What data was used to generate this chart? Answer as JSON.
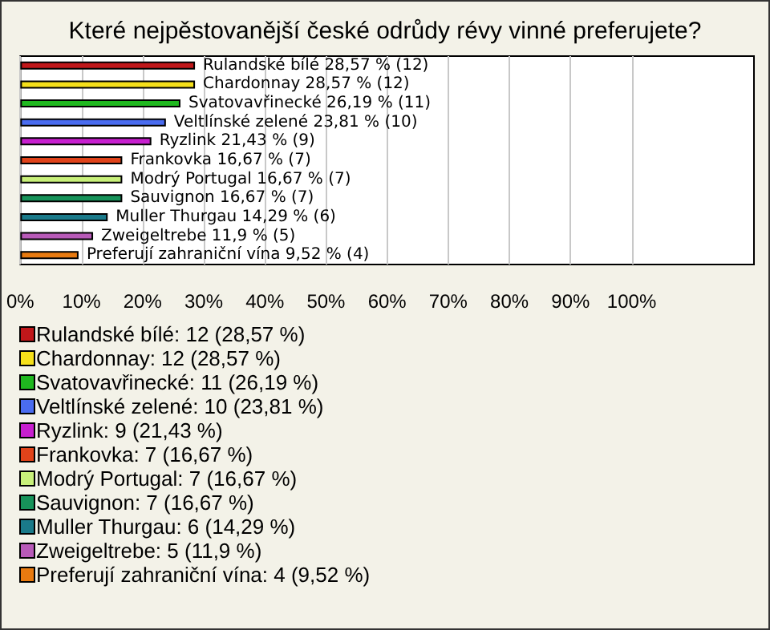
{
  "chart_data": {
    "type": "bar",
    "orientation": "horizontal",
    "title": "Které nejpěstovanější české odrůdy révy vinné preferujete?",
    "categories": [
      null,
      null,
      null,
      null,
      null,
      null,
      null,
      null,
      null,
      null,
      null
    ],
    "series": [
      {
        "name": "Rulandské bílé: 12 (28,57 %)",
        "color": "#c0171a",
        "values": [
          28.57,
          null,
          null,
          null,
          null,
          null,
          null,
          null,
          null,
          null,
          null
        ],
        "value_labels": [
          "Rulandské bílé 28,57 % (12)",
          null,
          null,
          null,
          null,
          null,
          null,
          null,
          null,
          null,
          null
        ]
      },
      {
        "name": "Chardonnay: 12 (28,57 %)",
        "color": "#f5e01a",
        "values": [
          null,
          28.57,
          null,
          null,
          null,
          null,
          null,
          null,
          null,
          null,
          null
        ],
        "value_labels": [
          null,
          "Chardonnay 28,57 % (12)",
          null,
          null,
          null,
          null,
          null,
          null,
          null,
          null,
          null
        ]
      },
      {
        "name": "Svatovavřinecké: 11 (26,19 %)",
        "color": "#1fb81f",
        "values": [
          null,
          null,
          26.19,
          null,
          null,
          null,
          null,
          null,
          null,
          null,
          null
        ],
        "value_labels": [
          null,
          null,
          "Svatovavřinecké 26,19 % (11)",
          null,
          null,
          null,
          null,
          null,
          null,
          null,
          null
        ]
      },
      {
        "name": "Veltlínské zelené: 10 (23,81 %)",
        "color": "#4a6cf0",
        "values": [
          null,
          null,
          null,
          23.81,
          null,
          null,
          null,
          null,
          null,
          null,
          null
        ],
        "value_labels": [
          null,
          null,
          null,
          "Veltlínské zelené 23,81 % (10)",
          null,
          null,
          null,
          null,
          null,
          null,
          null
        ]
      },
      {
        "name": "Ryzlink: 9 (21,43 %)",
        "color": "#c71fcf",
        "values": [
          null,
          null,
          null,
          null,
          21.43,
          null,
          null,
          null,
          null,
          null,
          null
        ],
        "value_labels": [
          null,
          null,
          null,
          null,
          "Ryzlink 21,43 % (9)",
          null,
          null,
          null,
          null,
          null,
          null
        ]
      },
      {
        "name": "Frankovka: 7 (16,67 %)",
        "color": "#e0431a",
        "values": [
          null,
          null,
          null,
          null,
          null,
          16.67,
          null,
          null,
          null,
          null,
          null
        ],
        "value_labels": [
          null,
          null,
          null,
          null,
          null,
          "Frankovka 16,67 % (7)",
          null,
          null,
          null,
          null,
          null
        ]
      },
      {
        "name": "Modrý Portugal: 7 (16,67 %)",
        "color": "#c8f07a",
        "values": [
          null,
          null,
          null,
          null,
          null,
          null,
          16.67,
          null,
          null,
          null,
          null
        ],
        "value_labels": [
          null,
          null,
          null,
          null,
          null,
          null,
          "Modrý Portugal 16,67 % (7)",
          null,
          null,
          null,
          null
        ]
      },
      {
        "name": "Sauvignon: 7 (16,67 %)",
        "color": "#17935a",
        "values": [
          null,
          null,
          null,
          null,
          null,
          null,
          null,
          16.67,
          null,
          null,
          null
        ],
        "value_labels": [
          null,
          null,
          null,
          null,
          null,
          null,
          null,
          "Sauvignon 16,67 % (7)",
          null,
          null,
          null
        ]
      },
      {
        "name": "Muller Thurgau: 6 (14,29 %)",
        "color": "#1a7a8a",
        "values": [
          null,
          null,
          null,
          null,
          null,
          null,
          null,
          null,
          14.29,
          null,
          null
        ],
        "value_labels": [
          null,
          null,
          null,
          null,
          null,
          null,
          null,
          null,
          "Muller Thurgau 14,29 % (6)",
          null,
          null
        ]
      },
      {
        "name": "Zweigeltrebe: 5 (11,9 %)",
        "color": "#b85ab8",
        "values": [
          null,
          null,
          null,
          null,
          null,
          null,
          null,
          null,
          null,
          11.9,
          null
        ],
        "value_labels": [
          null,
          null,
          null,
          null,
          null,
          null,
          null,
          null,
          null,
          "Zweigeltrebe 11,9 % (5)",
          null
        ]
      },
      {
        "name": "Preferují zahraniční vína: 4 (9,52 %)",
        "color": "#e87a10",
        "values": [
          null,
          null,
          null,
          null,
          null,
          null,
          null,
          null,
          null,
          null,
          9.52
        ],
        "value_labels": [
          null,
          null,
          null,
          null,
          null,
          null,
          null,
          null,
          null,
          null,
          "Preferují zahraniční vína 9,52 % (4)"
        ]
      }
    ],
    "xlim": [
      0,
      120
    ],
    "xticks": [
      {
        "value": 0,
        "label": "0%"
      },
      {
        "value": 10,
        "label": "10%"
      },
      {
        "value": 20,
        "label": "20%"
      },
      {
        "value": 30,
        "label": "30%"
      },
      {
        "value": 40,
        "label": "40%"
      },
      {
        "value": 50,
        "label": "50%"
      },
      {
        "value": 60,
        "label": "60%"
      },
      {
        "value": 70,
        "label": "70%"
      },
      {
        "value": 80,
        "label": "80%"
      },
      {
        "value": 90,
        "label": "90%"
      },
      {
        "value": 100,
        "label": "100%"
      }
    ],
    "grid": "x",
    "legend": "bottom left"
  }
}
